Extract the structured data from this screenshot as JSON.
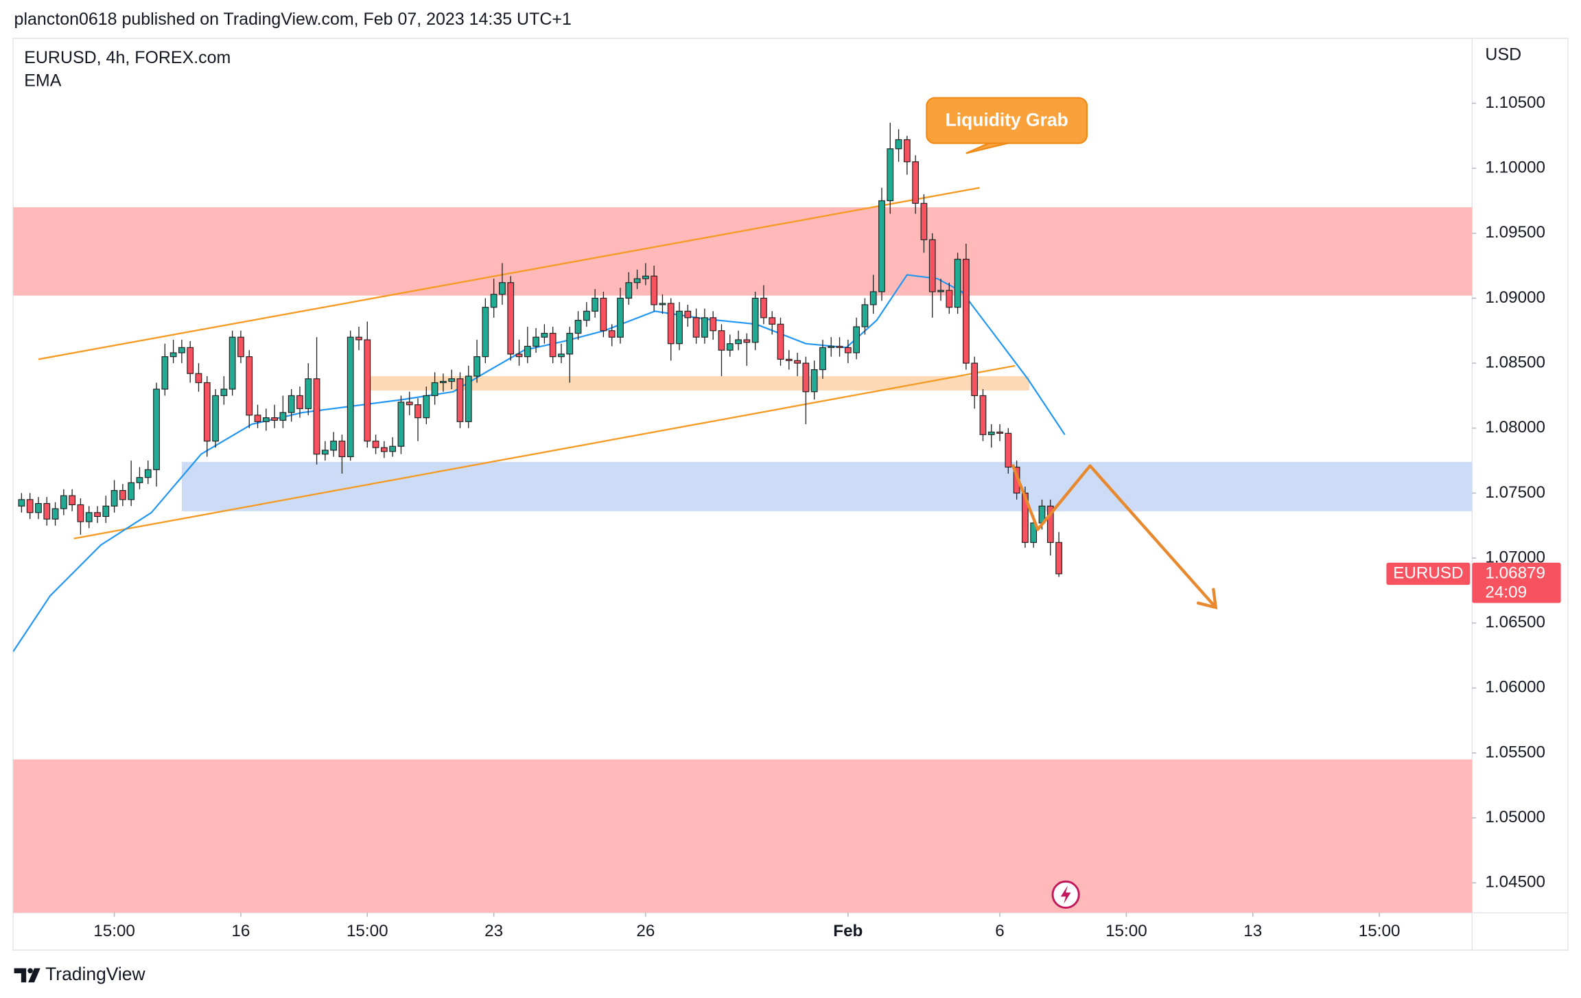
{
  "header": "plancton0618 published on TradingView.com, Feb 07, 2023 14:35 UTC+1",
  "footer": "TradingView",
  "chart_data": {
    "type": "candlestick",
    "title": "EURUSD, 4h, FOREX.com",
    "currency": "USD",
    "annotation": "Liquidity Grab",
    "price_label_name": "EURUSD",
    "countdown": "24:09",
    "up_color": "#22ab94",
    "down_color": "#f7525f",
    "grid": false,
    "xlim": [
      -27,
      146
    ],
    "xticks": [
      {
        "value": -15,
        "label": "15:00"
      },
      {
        "value": 0,
        "label": "16"
      },
      {
        "value": 15,
        "label": "15:00"
      },
      {
        "value": 30,
        "label": "23"
      },
      {
        "value": 48,
        "label": "26"
      },
      {
        "value": 72,
        "label": "Feb"
      },
      {
        "value": 90,
        "label": "6"
      },
      {
        "value": 105,
        "label": "15:00"
      },
      {
        "value": 120,
        "label": "13"
      },
      {
        "value": 135,
        "label": "15:00"
      }
    ],
    "ylim": [
      1.0427,
      1.11
    ],
    "yticks": [
      {
        "value": 1.045,
        "label": "1.04500"
      },
      {
        "value": 1.05,
        "label": "1.05000"
      },
      {
        "value": 1.055,
        "label": "1.05500"
      },
      {
        "value": 1.06,
        "label": "1.06000"
      },
      {
        "value": 1.065,
        "label": "1.06500"
      },
      {
        "value": 1.07,
        "label": "1.07000"
      },
      {
        "value": 1.075,
        "label": "1.07500"
      },
      {
        "value": 1.08,
        "label": "1.08000"
      },
      {
        "value": 1.085,
        "label": "1.08500"
      },
      {
        "value": 1.09,
        "label": "1.09000"
      },
      {
        "value": 1.095,
        "label": "1.09500"
      },
      {
        "value": 1.1,
        "label": "1.10000"
      },
      {
        "value": 1.105,
        "label": "1.10500"
      }
    ],
    "x": [
      -26,
      -25,
      -24,
      -23,
      -22,
      -21,
      -20,
      -19,
      -18,
      -17,
      -16,
      -15,
      -14,
      -13,
      -12,
      -11,
      -10,
      -9,
      -8,
      -7,
      -6,
      -5,
      -4,
      -3,
      -2,
      -1,
      0,
      1,
      2,
      3,
      4,
      5,
      6,
      7,
      8,
      9,
      10,
      11,
      12,
      13,
      14,
      15,
      16,
      17,
      18,
      19,
      20,
      21,
      22,
      23,
      24,
      25,
      26,
      27,
      28,
      29,
      30,
      31,
      32,
      33,
      34,
      35,
      36,
      37,
      38,
      39,
      40,
      41,
      42,
      43,
      44,
      45,
      46,
      47,
      48,
      49,
      50,
      51,
      52,
      53,
      54,
      55,
      56,
      57,
      58,
      59,
      60,
      61,
      62,
      63,
      64,
      65,
      66,
      67,
      68,
      69,
      70,
      71,
      72,
      73,
      74,
      75,
      76,
      77,
      78,
      79,
      80,
      81,
      82,
      83,
      84,
      85,
      86,
      87,
      88,
      89,
      90,
      91,
      92,
      93,
      94,
      95,
      96,
      97
    ],
    "open": [
      1.074,
      1.0745,
      1.0735,
      1.0742,
      1.073,
      1.0738,
      1.0748,
      1.0741,
      1.0728,
      1.0735,
      1.0732,
      1.074,
      1.0752,
      1.0745,
      1.0758,
      1.0762,
      1.0768,
      1.083,
      1.0855,
      1.0858,
      1.0862,
      1.0842,
      1.0835,
      1.079,
      1.0825,
      1.083,
      1.087,
      1.0855,
      1.081,
      1.0805,
      1.0808,
      1.0806,
      1.0812,
      1.0825,
      1.0815,
      1.0838,
      1.078,
      1.0783,
      1.079,
      1.0778,
      1.087,
      1.0868,
      1.079,
      1.0785,
      1.0782,
      1.0786,
      1.082,
      1.0818,
      1.0808,
      1.0825,
      1.0835,
      1.0836,
      1.0838,
      1.0805,
      1.084,
      1.0855,
      1.0893,
      1.0903,
      1.0912,
      1.0857,
      1.0855,
      1.0863,
      1.087,
      1.0873,
      1.0855,
      1.0857,
      1.0873,
      1.0883,
      1.089,
      1.09,
      1.0875,
      1.087,
      1.09,
      1.0912,
      1.0915,
      1.0917,
      1.0895,
      1.0896,
      1.0865,
      1.089,
      1.0885,
      1.087,
      1.0885,
      1.0875,
      1.086,
      1.0865,
      1.0868,
      1.0866,
      1.09,
      1.0885,
      1.088,
      1.0853,
      1.0852,
      1.085,
      1.0828,
      1.0845,
      1.0862,
      1.0863,
      1.0862,
      1.0858,
      1.0878,
      1.0895,
      1.0905,
      1.0975,
      1.1015,
      1.1022,
      1.1005,
      1.0973,
      1.0945,
      1.0905,
      1.0906,
      1.0893,
      1.093,
      1.085,
      1.0825,
      1.0795,
      1.0797,
      1.0796,
      1.077,
      1.075,
      1.0712,
      1.0727,
      1.074,
      1.0712
    ],
    "high": [
      1.075,
      1.075,
      1.0747,
      1.0747,
      1.0743,
      1.0753,
      1.0753,
      1.0746,
      1.074,
      1.074,
      1.0748,
      1.076,
      1.0757,
      1.0775,
      1.077,
      1.0775,
      1.0835,
      1.0865,
      1.0868,
      1.0868,
      1.0867,
      1.085,
      1.084,
      1.083,
      1.084,
      1.0875,
      1.0875,
      1.086,
      1.0818,
      1.0815,
      1.0818,
      1.0825,
      1.083,
      1.0832,
      1.085,
      1.087,
      1.079,
      1.0797,
      1.0795,
      1.0875,
      1.0878,
      1.0882,
      1.0795,
      1.079,
      1.0793,
      1.0825,
      1.0828,
      1.0823,
      1.0832,
      1.0843,
      1.0842,
      1.0845,
      1.0843,
      1.0848,
      1.0868,
      1.09,
      1.0915,
      1.0927,
      1.0917,
      1.0868,
      1.0878,
      1.0877,
      1.088,
      1.0878,
      1.0865,
      1.0878,
      1.089,
      1.0897,
      1.0907,
      1.0905,
      1.088,
      1.0908,
      1.092,
      1.0922,
      1.0927,
      1.0925,
      1.0903,
      1.09,
      1.0897,
      1.0895,
      1.0892,
      1.0892,
      1.089,
      1.088,
      1.0872,
      1.0875,
      1.0873,
      1.0905,
      1.091,
      1.089,
      1.0885,
      1.086,
      1.0858,
      1.0855,
      1.0852,
      1.0868,
      1.087,
      1.087,
      1.0868,
      1.0885,
      1.09,
      1.0918,
      1.0985,
      1.1035,
      1.103,
      1.1025,
      1.101,
      1.098,
      1.095,
      1.0915,
      1.0912,
      1.0935,
      1.0942,
      1.0855,
      1.083,
      1.0803,
      1.0803,
      1.08,
      1.0775,
      1.0755,
      1.0733,
      1.0745,
      1.0745,
      1.072
    ],
    "low": [
      1.0735,
      1.073,
      1.073,
      1.0725,
      1.0725,
      1.0733,
      1.0736,
      1.0718,
      1.0723,
      1.0727,
      1.0727,
      1.0735,
      1.074,
      1.074,
      1.0753,
      1.0757,
      1.0755,
      1.0825,
      1.085,
      1.085,
      1.0835,
      1.0828,
      1.0778,
      1.0785,
      1.0818,
      1.0825,
      1.085,
      1.08,
      1.08,
      1.0798,
      1.08,
      1.08,
      1.0805,
      1.0808,
      1.081,
      1.0772,
      1.0775,
      1.0778,
      1.0765,
      1.0775,
      1.086,
      1.0785,
      1.078,
      1.0777,
      1.0778,
      1.078,
      1.081,
      1.079,
      1.0803,
      1.0818,
      1.0828,
      1.083,
      1.08,
      1.08,
      1.0835,
      1.085,
      1.0885,
      1.0895,
      1.0852,
      1.0848,
      1.085,
      1.0858,
      1.0865,
      1.085,
      1.085,
      1.0835,
      1.0868,
      1.0878,
      1.0885,
      1.087,
      1.0863,
      1.0865,
      1.0895,
      1.0907,
      1.091,
      1.089,
      1.0888,
      1.0852,
      1.086,
      1.0878,
      1.0865,
      1.0865,
      1.0868,
      1.084,
      1.0855,
      1.086,
      1.0848,
      1.086,
      1.088,
      1.0872,
      1.0848,
      1.0845,
      1.084,
      1.0803,
      1.0822,
      1.0838,
      1.0855,
      1.0855,
      1.085,
      1.0853,
      1.0872,
      1.0888,
      1.0898,
      1.0965,
      1.1005,
      1.0995,
      1.0965,
      1.0935,
      1.0885,
      1.0898,
      1.0888,
      1.0888,
      1.0845,
      1.0815,
      1.079,
      1.0785,
      1.079,
      1.0765,
      1.0745,
      1.0708,
      1.0708,
      1.0722,
      1.0702,
      1.06855
    ],
    "close": [
      1.0745,
      1.0735,
      1.0742,
      1.073,
      1.0738,
      1.0748,
      1.0741,
      1.0728,
      1.0735,
      1.0732,
      1.074,
      1.0752,
      1.0745,
      1.0758,
      1.0762,
      1.0768,
      1.083,
      1.0855,
      1.0858,
      1.0862,
      1.0842,
      1.0835,
      1.079,
      1.0825,
      1.083,
      1.087,
      1.0855,
      1.081,
      1.0805,
      1.0808,
      1.0806,
      1.0812,
      1.0825,
      1.0815,
      1.0838,
      1.078,
      1.0783,
      1.079,
      1.0778,
      1.087,
      1.0868,
      1.079,
      1.0785,
      1.0782,
      1.0786,
      1.082,
      1.0818,
      1.0808,
      1.0825,
      1.0835,
      1.0836,
      1.0838,
      1.0805,
      1.084,
      1.0855,
      1.0893,
      1.0903,
      1.0912,
      1.0857,
      1.0855,
      1.0863,
      1.087,
      1.0873,
      1.0855,
      1.0857,
      1.0873,
      1.0883,
      1.089,
      1.09,
      1.0875,
      1.087,
      1.09,
      1.0912,
      1.0915,
      1.0917,
      1.0895,
      1.0896,
      1.0865,
      1.089,
      1.0885,
      1.087,
      1.0885,
      1.0875,
      1.086,
      1.0865,
      1.0868,
      1.0866,
      1.09,
      1.0885,
      1.088,
      1.0853,
      1.0852,
      1.085,
      1.0828,
      1.0845,
      1.0862,
      1.0863,
      1.0862,
      1.0858,
      1.0878,
      1.0895,
      1.0905,
      1.0975,
      1.1015,
      1.1022,
      1.1005,
      1.0973,
      1.0945,
      1.0905,
      1.0906,
      1.0893,
      1.093,
      1.085,
      1.0825,
      1.0795,
      1.0797,
      1.0796,
      1.077,
      1.075,
      1.0712,
      1.0727,
      1.074,
      1.0712,
      1.06879
    ],
    "ema": {
      "name": "EMA",
      "color": "#2196f3",
      "x": [
        -27,
        -22.6,
        -16.6,
        -10.6,
        -4.7,
        1.3,
        7.3,
        13.3,
        19.2,
        25.2,
        28.8,
        33.6,
        38.4,
        43.1,
        49.1,
        55.1,
        61.1,
        67,
        71.8,
        75.4,
        79,
        82.6,
        85.5,
        89.7,
        93.3,
        97.7
      ],
      "values": [
        1.0628,
        1.0671,
        1.071,
        1.0735,
        1.078,
        1.0803,
        1.0812,
        1.0817,
        1.0822,
        1.0828,
        1.0842,
        1.086,
        1.0867,
        1.0875,
        1.089,
        1.0884,
        1.088,
        1.0865,
        1.0862,
        1.0883,
        1.0918,
        1.0915,
        1.0905,
        1.0869,
        1.0838,
        1.0795
      ]
    },
    "zones": [
      {
        "color": "#ffb9b9",
        "x": [
          -27,
          146
        ],
        "y": [
          1.0902,
          1.097
        ]
      },
      {
        "color": "#ffb9b9",
        "x": [
          -27,
          146
        ],
        "y": [
          1.0427,
          1.0545
        ]
      },
      {
        "color": "#cddcf6",
        "x": [
          -7,
          146
        ],
        "y": [
          1.0736,
          1.0774
        ]
      },
      {
        "color": "#fdd9b6",
        "x": [
          15,
          93.5
        ],
        "y": [
          1.0829,
          1.084
        ]
      }
    ],
    "lines": [
      {
        "color": "#f59a23",
        "x": [
          -24,
          87.6
        ],
        "y": [
          1.0853,
          1.0985
        ]
      },
      {
        "color": "#f59a23",
        "x": [
          -19.8,
          91.8
        ],
        "y": [
          1.0715,
          1.0848
        ]
      }
    ],
    "projection": {
      "color": "#e8892f",
      "x": [
        91.5,
        94.5,
        100.7,
        115.6
      ],
      "y": [
        1.0772,
        1.0722,
        1.0771,
        1.0662
      ]
    }
  }
}
